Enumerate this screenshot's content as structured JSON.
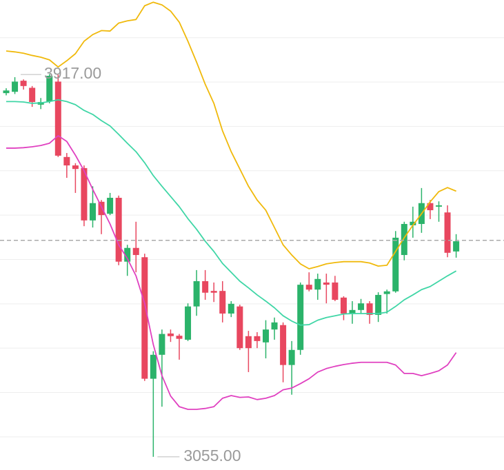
{
  "chart_data": {
    "type": "candlestick",
    "open": [
      3875,
      3878,
      3903,
      3887,
      3849,
      3856,
      3901,
      3731,
      3712,
      3706,
      3588,
      3630,
      3603,
      3639,
      3495,
      3526,
      3505,
      3231,
      3285,
      3333,
      3328,
      3319,
      3394,
      3451,
      3429,
      3429,
      3378,
      3394,
      3327,
      3327,
      3313,
      3342,
      3352,
      3262,
      3296,
      3443,
      3432,
      3448,
      3448,
      3414,
      3378,
      3386,
      3401,
      3375,
      3422,
      3428,
      3510,
      3577,
      3580,
      3627,
      3619,
      3606,
      3518
    ],
    "high": [
      3886,
      3911,
      3906,
      3891,
      3864,
      3918,
      3917,
      3740,
      3717,
      3712,
      3665,
      3634,
      3650,
      3644,
      3533,
      3585,
      3513,
      3293,
      3342,
      3342,
      3332,
      3401,
      3476,
      3476,
      3448,
      3451,
      3406,
      3398,
      3339,
      3336,
      3363,
      3369,
      3358,
      3316,
      3448,
      3471,
      3468,
      3468,
      3463,
      3417,
      3406,
      3411,
      3406,
      3426,
      3432,
      3564,
      3585,
      3619,
      3661,
      3634,
      3631,
      3622,
      3557
    ],
    "low": [
      3870,
      3873,
      3883,
      3844,
      3839,
      3852,
      3731,
      3684,
      3650,
      3575,
      3572,
      3557,
      3600,
      3487,
      3463,
      3471,
      3226,
      3055,
      3168,
      3314,
      3274,
      3316,
      3373,
      3409,
      3404,
      3358,
      3370,
      3296,
      3246,
      3300,
      3277,
      3319,
      3223,
      3195,
      3285,
      3428,
      3409,
      3401,
      3406,
      3363,
      3355,
      3378,
      3355,
      3359,
      3378,
      3425,
      3498,
      3549,
      3560,
      3591,
      3585,
      3505,
      3504
    ],
    "close": [
      3881,
      3901,
      3891,
      3855,
      3855,
      3914,
      3734,
      3712,
      3704,
      3588,
      3627,
      3600,
      3639,
      3495,
      3526,
      3510,
      3231,
      3285,
      3332,
      3327,
      3321,
      3394,
      3451,
      3425,
      3425,
      3378,
      3400,
      3300,
      3300,
      3316,
      3342,
      3358,
      3262,
      3296,
      3443,
      3432,
      3456,
      3443,
      3409,
      3378,
      3386,
      3401,
      3375,
      3420,
      3428,
      3549,
      3580,
      3585,
      3627,
      3611,
      3622,
      3515,
      3541
    ],
    "up_color": "#2bb36a",
    "down_color": "#e8475f",
    "series": [
      {
        "color": "#f0b90b",
        "values": [
          3970,
          3968,
          3965,
          3960,
          3956,
          3950,
          3934,
          3948,
          3964,
          3992,
          4007,
          4016,
          4015,
          4033,
          4038,
          4041,
          4072,
          4080,
          4074,
          4060,
          4035,
          3992,
          3945,
          3895,
          3852,
          3790,
          3743,
          3704,
          3665,
          3634,
          3611,
          3572,
          3533,
          3510,
          3490,
          3479,
          3484,
          3490,
          3493,
          3495,
          3495,
          3495,
          3492,
          3485,
          3487,
          3518,
          3549,
          3577,
          3603,
          3630,
          3653,
          3662,
          3654
        ]
      },
      {
        "color": "#3fd6a6",
        "values": [
          3856,
          3856,
          3855,
          3852,
          3853,
          3856,
          3860,
          3856,
          3849,
          3836,
          3827,
          3813,
          3801,
          3782,
          3762,
          3743,
          3718,
          3689,
          3665,
          3642,
          3619,
          3592,
          3568,
          3541,
          3518,
          3491,
          3471,
          3451,
          3436,
          3420,
          3406,
          3391,
          3373,
          3361,
          3352,
          3353,
          3363,
          3369,
          3373,
          3377,
          3378,
          3378,
          3378,
          3378,
          3381,
          3394,
          3409,
          3420,
          3432,
          3439,
          3451,
          3463,
          3474
        ]
      },
      {
        "color": "#e040c0",
        "values": [
          3751,
          3751,
          3752,
          3754,
          3757,
          3762,
          3779,
          3766,
          3735,
          3700,
          3658,
          3619,
          3580,
          3533,
          3502,
          3463,
          3401,
          3308,
          3238,
          3192,
          3168,
          3162,
          3162,
          3164,
          3168,
          3187,
          3193,
          3189,
          3190,
          3184,
          3187,
          3193,
          3206,
          3210,
          3220,
          3231,
          3246,
          3254,
          3259,
          3263,
          3266,
          3268,
          3268,
          3268,
          3268,
          3262,
          3243,
          3243,
          3238,
          3243,
          3249,
          3262,
          3290
        ]
      }
    ],
    "ylim": [
      3033,
      4085
    ],
    "yticks": [
      4000,
      3900,
      3800,
      3700,
      3600,
      3500,
      3400,
      3300,
      3200,
      3100
    ],
    "grid": true,
    "price_line": 3543,
    "annotations": [
      {
        "value": 3917,
        "label": "3917.00",
        "index": 6
      },
      {
        "value": 3055,
        "label": "3055.00",
        "index": 17
      }
    ]
  }
}
